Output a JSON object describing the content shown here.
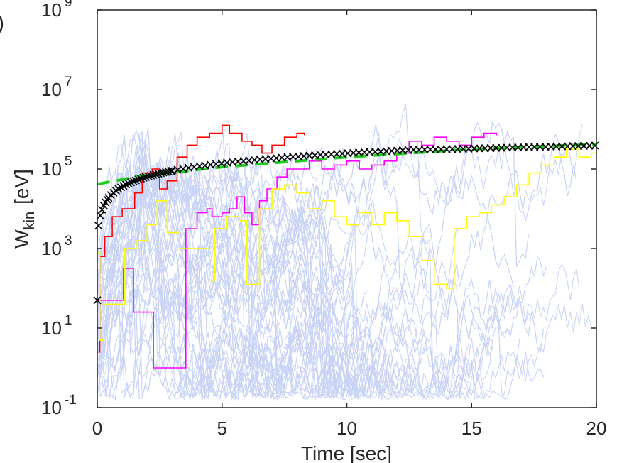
{
  "chart_data": {
    "type": "line",
    "panel_label": ")",
    "xlabel": "Time [sec]",
    "ylabel_main": "W",
    "ylabel_sub": "kin",
    "ylabel_unit": "[eV]",
    "y_scale": "log",
    "xlim": [
      0,
      20
    ],
    "ylim_exponents": [
      -1,
      9
    ],
    "x_ticks": [
      {
        "value": 0,
        "label": "0"
      },
      {
        "value": 5,
        "label": "5"
      },
      {
        "value": 10,
        "label": "10"
      },
      {
        "value": 15,
        "label": "15"
      },
      {
        "value": 20,
        "label": "20"
      }
    ],
    "y_ticks": [
      {
        "exponent": -1,
        "base": "10",
        "sup": "-1"
      },
      {
        "exponent": 1,
        "base": "10",
        "sup": "1"
      },
      {
        "exponent": 3,
        "base": "10",
        "sup": "3"
      },
      {
        "exponent": 5,
        "base": "10",
        "sup": "5"
      },
      {
        "exponent": 7,
        "base": "10",
        "sup": "7"
      },
      {
        "exponent": 9,
        "base": "10",
        "sup": "9"
      }
    ],
    "colors": {
      "background_traces": "#c8d3f5",
      "red": "#ff0000",
      "magenta": "#ff00ff",
      "yellow": "#ffff00",
      "fit": "#22cc22",
      "mean": "#000000",
      "axes": "#262626"
    },
    "background_traces": {
      "count": 70,
      "description_note": "many light-blue single-particle energy traces"
    },
    "series": [
      {
        "name": "red",
        "color": "#ff0000",
        "style": "step",
        "points": [
          [
            0,
            0.4
          ],
          [
            0.1,
            2.8
          ],
          [
            0.3,
            3.3
          ],
          [
            0.6,
            3.8
          ],
          [
            1.0,
            4.0
          ],
          [
            1.5,
            4.4
          ],
          [
            1.8,
            4.9
          ],
          [
            2.2,
            5.0
          ],
          [
            2.5,
            4.5
          ],
          [
            2.8,
            4.7
          ],
          [
            3.2,
            5.3
          ],
          [
            3.6,
            5.6
          ],
          [
            4.0,
            5.8
          ],
          [
            4.5,
            5.9
          ],
          [
            5.0,
            6.1
          ],
          [
            5.3,
            5.9
          ],
          [
            5.8,
            5.7
          ],
          [
            6.2,
            5.6
          ],
          [
            6.6,
            5.4
          ],
          [
            7.0,
            5.6
          ],
          [
            7.5,
            5.8
          ],
          [
            8.0,
            5.9
          ],
          [
            8.3,
            5.85
          ]
        ]
      },
      {
        "name": "magenta",
        "color": "#ff00ff",
        "style": "step",
        "points": [
          [
            0,
            1.7
          ],
          [
            1.0,
            1.7
          ],
          [
            1.05,
            2.5
          ],
          [
            1.4,
            2.5
          ],
          [
            1.45,
            1.4
          ],
          [
            2.2,
            1.4
          ],
          [
            2.25,
            0.0
          ],
          [
            3.5,
            0.0
          ],
          [
            3.55,
            3.5
          ],
          [
            4.0,
            3.9
          ],
          [
            4.4,
            4.0
          ],
          [
            4.6,
            3.8
          ],
          [
            5.0,
            3.9
          ],
          [
            5.3,
            4.0
          ],
          [
            5.6,
            4.3
          ],
          [
            5.9,
            3.9
          ],
          [
            6.2,
            3.6
          ],
          [
            6.5,
            4.2
          ],
          [
            6.8,
            4.5
          ],
          [
            7.2,
            4.8
          ],
          [
            7.6,
            5.0
          ],
          [
            8.0,
            5.0
          ],
          [
            8.5,
            5.2
          ],
          [
            9.0,
            5.0
          ],
          [
            9.5,
            5.1
          ],
          [
            10.0,
            5.2
          ],
          [
            10.5,
            5.0
          ],
          [
            11.0,
            5.1
          ],
          [
            11.5,
            5.2
          ],
          [
            12.0,
            5.4
          ],
          [
            12.5,
            5.7
          ],
          [
            13.0,
            5.6
          ],
          [
            13.5,
            5.8
          ],
          [
            14.0,
            5.7
          ],
          [
            14.5,
            5.6
          ],
          [
            15.0,
            5.8
          ],
          [
            15.5,
            5.9
          ],
          [
            16.0,
            5.85
          ]
        ]
      },
      {
        "name": "yellow",
        "color": "#ffff00",
        "style": "step",
        "points": [
          [
            0,
            2.9
          ],
          [
            0.1,
            0.7
          ],
          [
            0.2,
            0.7
          ],
          [
            0.25,
            1.6
          ],
          [
            1.0,
            1.6
          ],
          [
            1.1,
            3.0
          ],
          [
            1.6,
            3.2
          ],
          [
            2.0,
            3.6
          ],
          [
            2.4,
            4.2
          ],
          [
            2.8,
            3.4
          ],
          [
            3.3,
            3.0
          ],
          [
            4.0,
            3.0
          ],
          [
            4.5,
            2.2
          ],
          [
            4.6,
            2.2
          ],
          [
            4.7,
            3.5
          ],
          [
            5.2,
            3.8
          ],
          [
            5.7,
            3.7
          ],
          [
            6.0,
            2.1
          ],
          [
            6.3,
            2.1
          ],
          [
            6.5,
            4.0
          ],
          [
            7.0,
            4.5
          ],
          [
            7.5,
            4.6
          ],
          [
            8.0,
            4.4
          ],
          [
            8.5,
            4.0
          ],
          [
            9.0,
            4.2
          ],
          [
            9.5,
            3.8
          ],
          [
            10.0,
            3.6
          ],
          [
            10.5,
            3.9
          ],
          [
            11.0,
            3.6
          ],
          [
            11.5,
            3.9
          ],
          [
            12.0,
            3.7
          ],
          [
            12.5,
            3.3
          ],
          [
            13.0,
            2.7
          ],
          [
            13.5,
            2.1
          ],
          [
            14.0,
            2.0
          ],
          [
            14.2,
            2.0
          ],
          [
            14.3,
            3.5
          ],
          [
            14.8,
            3.8
          ],
          [
            15.3,
            3.9
          ],
          [
            15.8,
            4.1
          ],
          [
            16.3,
            4.3
          ],
          [
            16.8,
            4.6
          ],
          [
            17.3,
            4.9
          ],
          [
            17.8,
            5.1
          ],
          [
            18.3,
            5.3
          ],
          [
            18.8,
            5.5
          ],
          [
            19.3,
            5.3
          ],
          [
            19.8,
            5.4
          ],
          [
            20.0,
            5.4
          ]
        ]
      }
    ],
    "fit_line": {
      "name": "power-law fit",
      "color": "#22cc22",
      "dash": true,
      "points": [
        [
          0,
          4.62
        ],
        [
          2,
          4.85
        ],
        [
          5,
          5.05
        ],
        [
          10,
          5.3
        ],
        [
          15,
          5.5
        ],
        [
          20,
          5.62
        ]
      ]
    },
    "mean_markers": {
      "name": "mean energy",
      "marker": "x",
      "color": "#000000",
      "A": 0.9,
      "B": 4.55,
      "scale": 0.65
    }
  }
}
